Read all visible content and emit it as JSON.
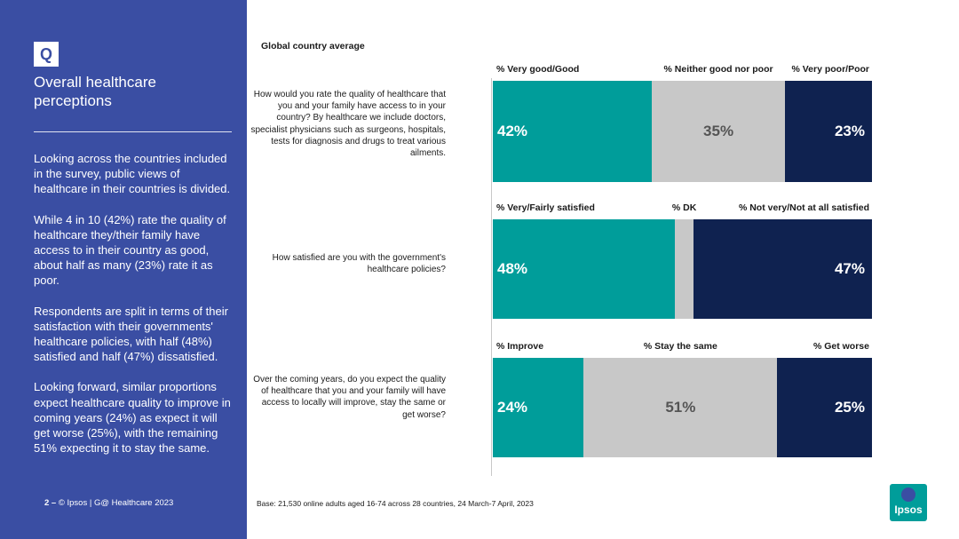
{
  "sidebar": {
    "badge": "Q",
    "title": "Overall healthcare perceptions",
    "paragraphs": [
      "Looking across the countries included in the survey, public views of healthcare in their countries is divided.",
      "While 4 in 10 (42%) rate the quality of healthcare they/their family have access to in their country as good, about half as many (23%) rate it as poor.",
      "Respondents are split in terms of their satisfaction with their governments' healthcare policies, with half (48%) satisfied and half (47%) dissatisfied.",
      "Looking forward, similar proportions expect healthcare quality to improve in coming years (24%) as expect it will get worse (25%), with the remaining 51% expecting it to stay the same."
    ],
    "footer_page": "2 –",
    "footer_text": "© Ipsos | G@ Healthcare 2023"
  },
  "main": {
    "section_label": "Global country average",
    "footnote": "Base: 21,530 online adults aged 16-74 across 28 countries, 24 March-7 April, 2023"
  },
  "logo": {
    "text": "Ipsos"
  },
  "colors": {
    "teal": "#009d9a",
    "grey": "#c8c8c8",
    "navy": "#0f2250",
    "sidebar": "#3a4ea3"
  },
  "chart_data": {
    "type": "bar",
    "orientation": "horizontal-stacked-100",
    "title": "Global country average",
    "rows": [
      {
        "question": "How would you rate the quality of healthcare that you and your family have access to in your country? By healthcare we include doctors, specialist physicians such as surgeons, hospitals, tests for diagnosis and drugs to treat various ailments.",
        "segments": [
          {
            "name": "% Very good/Good",
            "value": 42,
            "label": "42%",
            "color": "teal"
          },
          {
            "name": "% Neither good nor poor",
            "value": 35,
            "label": "35%",
            "color": "grey"
          },
          {
            "name": "% Very poor/Poor",
            "value": 23,
            "label": "23%",
            "color": "navy"
          }
        ]
      },
      {
        "question": "How satisfied are you with the government's healthcare policies?",
        "segments": [
          {
            "name": "% Very/Fairly satisfied",
            "value": 48,
            "label": "48%",
            "color": "teal"
          },
          {
            "name": "% DK",
            "value": 5,
            "label": "",
            "color": "grey"
          },
          {
            "name": "% Not very/Not at all satisfied",
            "value": 47,
            "label": "47%",
            "color": "navy"
          }
        ]
      },
      {
        "question": "Over the coming years, do you expect the quality of healthcare that you and your family will have access to locally will improve, stay the same or get worse?",
        "segments": [
          {
            "name": "% Improve",
            "value": 24,
            "label": "24%",
            "color": "teal"
          },
          {
            "name": "% Stay the same",
            "value": 51,
            "label": "51%",
            "color": "grey"
          },
          {
            "name": "% Get worse",
            "value": 25,
            "label": "25%",
            "color": "navy"
          }
        ]
      }
    ],
    "xlim": [
      0,
      100
    ]
  }
}
